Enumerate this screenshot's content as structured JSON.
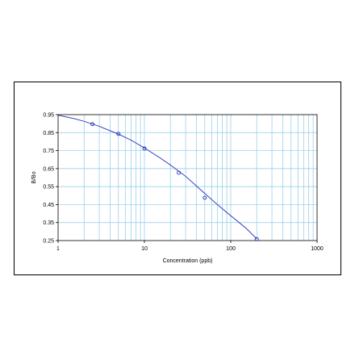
{
  "chart_data": {
    "type": "scatter",
    "title": "",
    "xlabel": "Concentration (ppb)",
    "ylabel": "B/Bo",
    "xscale": "log",
    "xlim": [
      1,
      1000
    ],
    "ylim": [
      0.25,
      0.95
    ],
    "x_ticks": [
      1,
      10,
      100,
      1000
    ],
    "x_tick_labels": [
      "1",
      "10",
      "100",
      "1000"
    ],
    "y_ticks": [
      0.25,
      0.35,
      0.45,
      0.55,
      0.65,
      0.75,
      0.85,
      0.95
    ],
    "y_tick_labels": [
      "0.25",
      "0.35",
      "0.45",
      "0.55",
      "0.65",
      "0.75",
      "0.85",
      "0.95"
    ],
    "grid": true,
    "legend": "none",
    "colors": {
      "grid": "#8ecae6",
      "series": "#1f2fbf",
      "axis": "#000000"
    },
    "series": [
      {
        "x": [
          2.5,
          5,
          10,
          25,
          50,
          200
        ],
        "y": [
          0.897,
          0.843,
          0.762,
          0.627,
          0.488,
          0.258
        ]
      }
    ],
    "fit_curve": {
      "x": [
        1,
        1.5,
        2,
        3,
        5,
        7,
        10,
        15,
        20,
        30,
        50,
        70,
        100,
        150,
        200
      ],
      "y": [
        0.947,
        0.929,
        0.913,
        0.885,
        0.842,
        0.808,
        0.765,
        0.711,
        0.67,
        0.607,
        0.512,
        0.45,
        0.388,
        0.319,
        0.26
      ]
    }
  }
}
